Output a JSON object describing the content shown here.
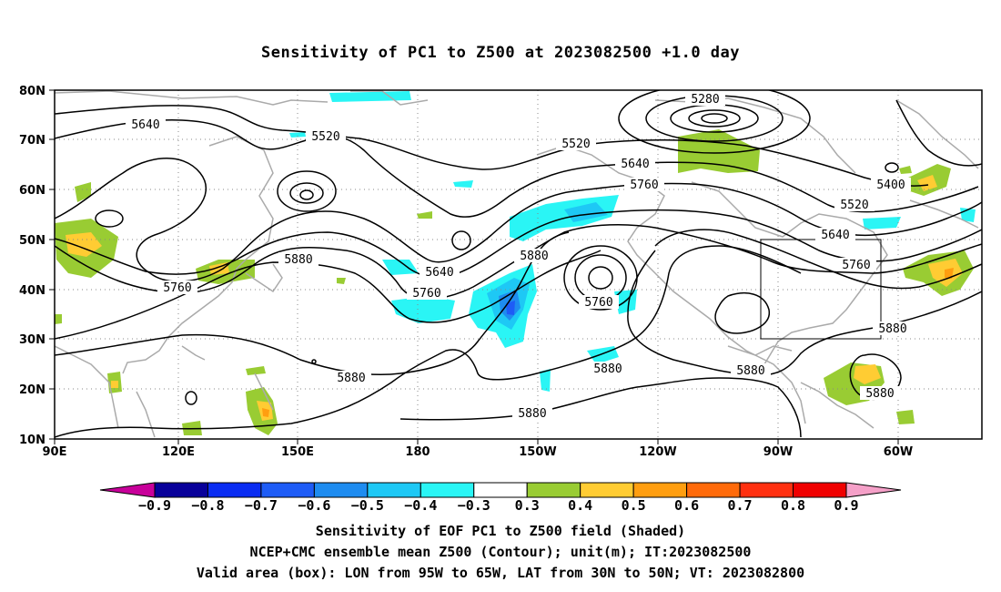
{
  "title": "Sensitivity of PC1 to Z500 at 2023082500 +1.0 day",
  "lat_labels": [
    "80N",
    "70N",
    "60N",
    "50N",
    "40N",
    "30N",
    "20N",
    "10N"
  ],
  "lon_labels": [
    "90E",
    "120E",
    "150E",
    "180",
    "150W",
    "120W",
    "90W",
    "60W"
  ],
  "contour_labels": {
    "c5640a": "5640",
    "c5520a": "5520",
    "c5280": "5280",
    "c5520b": "5520",
    "c5640b": "5640",
    "c5760a": "5760",
    "c5400": "5400",
    "c5520c": "5520",
    "c5640c": "5640",
    "c5880a": "5880",
    "c5640d": "5640",
    "c5760b": "5760",
    "c5880b": "5880",
    "c5760c": "5760",
    "c5760d": "5760",
    "c5880c": "5880",
    "c5880d": "5880",
    "c5880e": "5880",
    "c5880f": "5880",
    "c5880g": "5880",
    "c5760e": "5760"
  },
  "colorbar": {
    "labels": [
      "−0.9",
      "−0.8",
      "−0.7",
      "−0.6",
      "−0.5",
      "−0.4",
      "−0.3",
      "0.3",
      "0.4",
      "0.5",
      "0.6",
      "0.7",
      "0.8",
      "0.9"
    ],
    "colors": [
      "#08009a",
      "#0a2cf2",
      "#1e5cf6",
      "#1e8cf0",
      "#1ec8f5",
      "#2af5f5",
      "#ffffff",
      "#99cc33",
      "#ffcc33",
      "#ff9e10",
      "#ff6a0a",
      "#ff3010",
      "#f00000"
    ],
    "low_end_color": "#c8009a",
    "high_end_color": "#f5a0c8"
  },
  "box": {
    "lon_range": "95W to 65W",
    "lat_range": "30N to 50N"
  },
  "captions": {
    "line1": "Sensitivity of EOF PC1 to Z500 field (Shaded)",
    "line2": "NCEP+CMC ensemble mean Z500 (Contour); unit(m); IT:2023082500",
    "line3": "Valid area (box): LON from 95W to 65W, LAT from 30N to 50N; VT: 2023082800"
  }
}
